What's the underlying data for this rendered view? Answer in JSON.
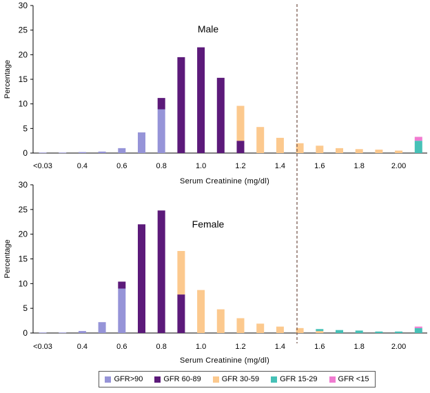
{
  "colors": {
    "gfr_gt90": "#9694d8",
    "gfr_60_89": "#5c1a7a",
    "gfr_30_59": "#fcc98e",
    "gfr_15_29": "#46c1b7",
    "gfr_lt15": "#f07bd0",
    "axis": "#000000",
    "cutoff": "#7a5a50"
  },
  "legend": {
    "items": [
      {
        "key": "gfr_gt90",
        "label": "GFR>90"
      },
      {
        "key": "gfr_60_89",
        "label": "GFR 60-89"
      },
      {
        "key": "gfr_30_59",
        "label": "GFR 30-59"
      },
      {
        "key": "gfr_15_29",
        "label": "GFR 15-29"
      },
      {
        "key": "gfr_lt15",
        "label": "GFR <15"
      }
    ]
  },
  "chart_data": [
    {
      "type": "bar",
      "stacked": true,
      "title": "Male",
      "xlabel": "Serum Creatinine (mg/dl)",
      "ylabel": "Percentage",
      "ylim": [
        0,
        30
      ],
      "yticks": [
        0,
        5,
        10,
        15,
        20,
        25,
        30
      ],
      "categories": [
        "<0.03",
        "0.3",
        "0.4",
        "0.5",
        "0.6",
        "0.7",
        "0.8",
        "0.9",
        "1.0",
        "1.1",
        "1.2",
        "1.3",
        "1.4",
        "1.5",
        "1.6",
        "1.7",
        "1.8",
        "1.9",
        "2.00",
        ">2.00"
      ],
      "tick_labels": [
        "<0.03",
        "0.4",
        "0.6",
        "0.8",
        "1.0",
        "1.2",
        "1.4",
        "1.6",
        "1.8",
        "2.00"
      ],
      "cutoff": 1.5,
      "series": [
        {
          "key": "gfr_gt90",
          "name": "GFR>90",
          "values": [
            0.1,
            0.1,
            0.2,
            0.3,
            1.0,
            4.2,
            8.9,
            0,
            0,
            0,
            0,
            0,
            0,
            0,
            0,
            0,
            0,
            0,
            0,
            0
          ]
        },
        {
          "key": "gfr_60_89",
          "name": "GFR 60-89",
          "values": [
            0,
            0,
            0,
            0,
            0,
            0,
            2.3,
            19.5,
            21.5,
            15.3,
            2.5,
            0,
            0,
            0,
            0,
            0,
            0,
            0,
            0,
            0
          ]
        },
        {
          "key": "gfr_30_59",
          "name": "GFR 30-59",
          "values": [
            0,
            0,
            0,
            0,
            0,
            0,
            0,
            0,
            0,
            0,
            7.1,
            5.3,
            3.1,
            2.0,
            1.5,
            1.0,
            0.8,
            0.7,
            0.5,
            0
          ]
        },
        {
          "key": "gfr_15_29",
          "name": "GFR 15-29",
          "values": [
            0,
            0,
            0,
            0,
            0,
            0,
            0,
            0,
            0,
            0,
            0,
            0,
            0,
            0,
            0,
            0,
            0,
            0,
            0,
            2.5
          ]
        },
        {
          "key": "gfr_lt15",
          "name": "GFR <15",
          "values": [
            0,
            0,
            0,
            0,
            0,
            0,
            0,
            0,
            0,
            0,
            0,
            0,
            0,
            0,
            0,
            0,
            0,
            0,
            0,
            0.8
          ]
        }
      ]
    },
    {
      "type": "bar",
      "stacked": true,
      "title": "Female",
      "xlabel": "Serum Creatinine (mg/dl)",
      "ylabel": "Percentage",
      "ylim": [
        0,
        30
      ],
      "yticks": [
        0,
        5,
        10,
        15,
        20,
        25,
        30
      ],
      "categories": [
        "<0.03",
        "0.3",
        "0.4",
        "0.5",
        "0.6",
        "0.7",
        "0.8",
        "0.9",
        "1.0",
        "1.1",
        "1.2",
        "1.3",
        "1.4",
        "1.5",
        "1.6",
        "1.7",
        "1.8",
        "1.9",
        "2.00",
        ">2.00"
      ],
      "tick_labels": [
        "<0.03",
        "0.4",
        "0.6",
        "0.8",
        "1.0",
        "1.2",
        "1.4",
        "1.6",
        "1.8",
        "2.00"
      ],
      "cutoff": 1.5,
      "series": [
        {
          "key": "gfr_gt90",
          "name": "GFR>90",
          "values": [
            0.1,
            0.1,
            0.4,
            2.2,
            9.0,
            0,
            0,
            0,
            0,
            0,
            0,
            0,
            0,
            0,
            0,
            0,
            0,
            0,
            0,
            0
          ]
        },
        {
          "key": "gfr_60_89",
          "name": "GFR 60-89",
          "values": [
            0,
            0,
            0,
            0,
            1.4,
            22.0,
            24.8,
            7.8,
            0,
            0,
            0,
            0,
            0,
            0,
            0,
            0,
            0,
            0,
            0,
            0
          ]
        },
        {
          "key": "gfr_30_59",
          "name": "GFR 30-59",
          "values": [
            0,
            0,
            0,
            0,
            0,
            0,
            0,
            8.8,
            8.7,
            4.8,
            3.0,
            1.9,
            1.3,
            1.0,
            0.4,
            0,
            0,
            0,
            0,
            0
          ]
        },
        {
          "key": "gfr_15_29",
          "name": "GFR 15-29",
          "values": [
            0,
            0,
            0,
            0,
            0,
            0,
            0,
            0,
            0,
            0,
            0,
            0,
            0,
            0,
            0.4,
            0.6,
            0.5,
            0.3,
            0.3,
            1.0
          ]
        },
        {
          "key": "gfr_lt15",
          "name": "GFR <15",
          "values": [
            0,
            0,
            0,
            0,
            0,
            0,
            0,
            0,
            0,
            0,
            0,
            0,
            0,
            0,
            0,
            0,
            0,
            0,
            0,
            0.3
          ]
        }
      ]
    }
  ]
}
